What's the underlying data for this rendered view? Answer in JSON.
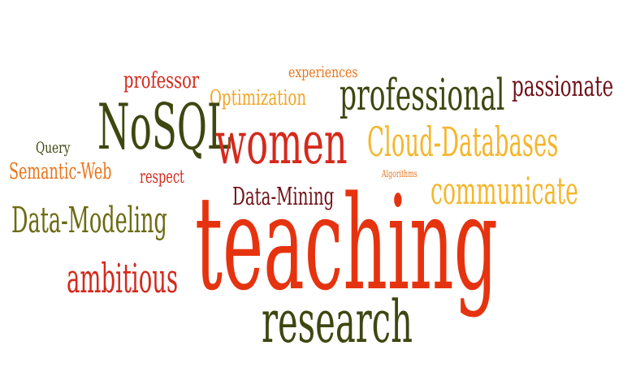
{
  "words": [
    {
      "key": "professor",
      "text": "professor",
      "color": "#d42a1c"
    },
    {
      "key": "experiences",
      "text": "experiences",
      "color": "#e8741a"
    },
    {
      "key": "optimization",
      "text": "Optimization",
      "color": "#f0a526"
    },
    {
      "key": "professional",
      "text": "professional",
      "color": "#3f4711"
    },
    {
      "key": "passionate",
      "text": "passionate",
      "color": "#6e1017"
    },
    {
      "key": "nosql",
      "text": "NoSQL",
      "color": "#3f4711"
    },
    {
      "key": "women",
      "text": "women",
      "color": "#d42a1c"
    },
    {
      "key": "cloud",
      "text": "Cloud-Databases",
      "color": "#f5b62c"
    },
    {
      "key": "query",
      "text": "Query",
      "color": "#3f4711"
    },
    {
      "key": "semantic",
      "text": "Semantic-Web",
      "color": "#e8741a"
    },
    {
      "key": "respect",
      "text": "respect",
      "color": "#d42a1c"
    },
    {
      "key": "algorithms",
      "text": "Algorithms",
      "color": "#e8741a"
    },
    {
      "key": "communicate",
      "text": "communicate",
      "color": "#f5b62c"
    },
    {
      "key": "datamining",
      "text": "Data-Mining",
      "color": "#6e1017"
    },
    {
      "key": "datamodeling",
      "text": "Data-Modeling",
      "color": "#6b6b13"
    },
    {
      "key": "teaching",
      "text": "teaching",
      "color": "#e6330f"
    },
    {
      "key": "ambitious",
      "text": "ambitious",
      "color": "#d42a1c"
    },
    {
      "key": "research",
      "text": "research",
      "color": "#3f4711"
    }
  ]
}
